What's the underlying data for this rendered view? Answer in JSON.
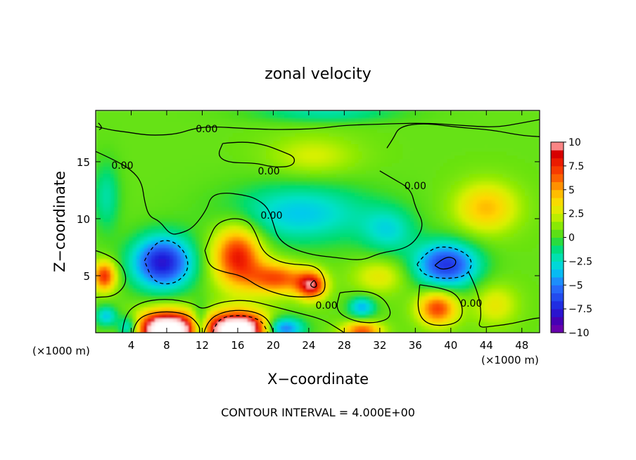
{
  "chart_data": {
    "type": "heatmap",
    "title": "zonal velocity",
    "xlabel": "X−coordinate",
    "ylabel": "Z−coordinate",
    "x_scale_note_left": "(×1000 m)",
    "x_scale_note_right": "(×1000 m)",
    "footer": "CONTOUR INTERVAL = 4.000E+00",
    "xlim": [
      0,
      50
    ],
    "ylim": [
      0,
      19.5
    ],
    "x_ticks": [
      4,
      8,
      12,
      16,
      20,
      24,
      28,
      32,
      36,
      40,
      44,
      48
    ],
    "x_tick_labels": [
      "4",
      "8",
      "12",
      "16",
      "20",
      "24",
      "28",
      "32",
      "36",
      "40",
      "44",
      "48"
    ],
    "y_ticks": [
      5,
      10,
      15
    ],
    "y_tick_labels": [
      "5",
      "10",
      "15"
    ],
    "colorbar": {
      "range": [
        -10,
        10
      ],
      "ticks": [
        10,
        7.5,
        5,
        2.5,
        0,
        -2.5,
        -5,
        -7.5,
        -10
      ],
      "tick_labels": [
        "10",
        "7.5",
        "5",
        "2.5",
        "0",
        "−2.5",
        "−5",
        "−7.5",
        "−10"
      ]
    },
    "contour_labels": [
      {
        "text": "0.00",
        "x": 12.5,
        "y": 17.9
      },
      {
        "text": "0.00",
        "x": 3.0,
        "y": 14.7
      },
      {
        "text": "0.00",
        "x": 19.5,
        "y": 14.2
      },
      {
        "text": "0.00",
        "x": 36.0,
        "y": 12.9
      },
      {
        "text": "0.00",
        "x": 19.8,
        "y": 10.3
      },
      {
        "text": "0.00",
        "x": 26.0,
        "y": 2.4
      },
      {
        "text": "0.00",
        "x": 42.3,
        "y": 2.6
      }
    ],
    "blobs": [
      {
        "x": 7.5,
        "y": 6.2,
        "v": -8.5,
        "rx": 3.4,
        "ry": 2.3
      },
      {
        "x": 39.5,
        "y": 6.0,
        "v": -7.5,
        "rx": 3.6,
        "ry": 2.0
      },
      {
        "x": 16.0,
        "y": 6.8,
        "v": 7.5,
        "rx": 2.8,
        "ry": 2.7
      },
      {
        "x": 20.5,
        "y": 4.8,
        "v": 6.0,
        "rx": 3.2,
        "ry": 1.4
      },
      {
        "x": 24.3,
        "y": 4.2,
        "v": 8.0,
        "rx": 1.6,
        "ry": 1.2
      },
      {
        "x": 1.0,
        "y": 5.0,
        "v": 7.0,
        "rx": 1.3,
        "ry": 1.3
      },
      {
        "x": 38.5,
        "y": 2.2,
        "v": 6.5,
        "rx": 2.2,
        "ry": 1.5
      },
      {
        "x": 8.0,
        "y": 0.3,
        "v": 14.0,
        "rx": 3.3,
        "ry": 1.6
      },
      {
        "x": 16.0,
        "y": 0.3,
        "v": 14.0,
        "rx": 3.6,
        "ry": 1.5
      },
      {
        "x": 11.8,
        "y": 0.3,
        "v": -6.0,
        "rx": 1.0,
        "ry": 1.8
      },
      {
        "x": 21.0,
        "y": 0.4,
        "v": -7.0,
        "rx": 2.3,
        "ry": 1.0
      },
      {
        "x": 3.7,
        "y": 0.5,
        "v": -5.0,
        "rx": 1.2,
        "ry": 1.0
      },
      {
        "x": 30.0,
        "y": 2.3,
        "v": -4.5,
        "rx": 1.5,
        "ry": 0.9
      },
      {
        "x": 30.0,
        "y": 0.2,
        "v": 6.0,
        "rx": 2.2,
        "ry": 0.8
      },
      {
        "x": 1.2,
        "y": 1.5,
        "v": -4.0,
        "rx": 1.2,
        "ry": 0.9
      },
      {
        "x": 23.0,
        "y": 10.5,
        "v": -4.0,
        "rx": 8.0,
        "ry": 2.6
      },
      {
        "x": 33.0,
        "y": 9.0,
        "v": -3.0,
        "rx": 3.0,
        "ry": 2.0
      },
      {
        "x": 24.5,
        "y": 15.5,
        "v": 2.0,
        "rx": 5.0,
        "ry": 1.8
      },
      {
        "x": 44.0,
        "y": 11.0,
        "v": 4.0,
        "rx": 3.5,
        "ry": 2.2
      },
      {
        "x": 32.0,
        "y": 5.0,
        "v": 2.5,
        "rx": 3.0,
        "ry": 1.5
      },
      {
        "x": 45.0,
        "y": 2.5,
        "v": 2.5,
        "rx": 2.5,
        "ry": 1.8
      },
      {
        "x": 1.2,
        "y": 12.0,
        "v": -2.5,
        "rx": 1.5,
        "ry": 3.0
      },
      {
        "x": 26.0,
        "y": 19.3,
        "v": -2.5,
        "rx": 8.0,
        "ry": 0.8
      }
    ],
    "contour_lines": [
      {
        "style": "solid",
        "points": [
          [
            0,
            18.1
          ],
          [
            1.5,
            17.8
          ],
          [
            3.5,
            17.6
          ],
          [
            6,
            17.3
          ],
          [
            9,
            17.4
          ],
          [
            11,
            17.9
          ],
          [
            13,
            18.1
          ],
          [
            17,
            17.9
          ],
          [
            21,
            17.8
          ],
          [
            25,
            17.9
          ],
          [
            28,
            18.2
          ],
          [
            32,
            18.3
          ],
          [
            37,
            18.4
          ],
          [
            41,
            18.2
          ],
          [
            45,
            18.0
          ],
          [
            48,
            18.4
          ],
          [
            50,
            18.7
          ]
        ]
      },
      {
        "style": "solid",
        "points": [
          [
            0,
            15.9
          ],
          [
            2,
            15.2
          ],
          [
            4,
            14.3
          ],
          [
            5.2,
            13.2
          ],
          [
            5.5,
            11.5
          ],
          [
            6.0,
            10.2
          ],
          [
            7.2,
            9.8
          ],
          [
            8.4,
            8.6
          ],
          [
            9.5,
            8.7
          ],
          [
            11.0,
            9.2
          ],
          [
            12.5,
            10.8
          ],
          [
            13.0,
            12.0
          ],
          [
            14.5,
            12.3
          ],
          [
            16.5,
            12.1
          ],
          [
            18.0,
            11.8
          ],
          [
            19.4,
            11.0
          ],
          [
            20.0,
            9.6
          ],
          [
            20.5,
            8.3
          ],
          [
            22.0,
            7.4
          ],
          [
            24.5,
            6.8
          ],
          [
            27.0,
            6.6
          ],
          [
            30.0,
            6.3
          ],
          [
            32.0,
            7.0
          ],
          [
            34.5,
            7.3
          ],
          [
            36.0,
            8.0
          ],
          [
            37.0,
            9.5
          ],
          [
            36.0,
            11.0
          ],
          [
            35.5,
            12.6
          ],
          [
            33.5,
            13.5
          ],
          [
            32.0,
            14.2
          ]
        ]
      },
      {
        "style": "solid",
        "points": [
          [
            14.3,
            16.6
          ],
          [
            16.5,
            16.8
          ],
          [
            19.0,
            16.5
          ],
          [
            21.0,
            15.9
          ],
          [
            22.5,
            15.4
          ],
          [
            22.2,
            14.6
          ],
          [
            20.0,
            14.5
          ],
          [
            18.0,
            14.9
          ],
          [
            15.0,
            14.9
          ],
          [
            13.7,
            15.5
          ],
          [
            14.3,
            16.6
          ]
        ]
      },
      {
        "style": "solid",
        "points": [
          [
            32.8,
            16.2
          ],
          [
            33.5,
            17.0
          ],
          [
            34.2,
            18.1
          ],
          [
            37.0,
            18.4
          ],
          [
            41.0,
            18.0
          ],
          [
            44.5,
            17.8
          ],
          [
            48.0,
            17.3
          ],
          [
            50.0,
            17.2
          ]
        ]
      },
      {
        "style": "solid",
        "points": [
          [
            12.3,
            7.2
          ],
          [
            12.8,
            8.3
          ],
          [
            13.6,
            9.6
          ],
          [
            15.5,
            10.1
          ],
          [
            17.2,
            9.8
          ],
          [
            18.0,
            8.8
          ],
          [
            18.8,
            7.1
          ],
          [
            20.4,
            6.3
          ],
          [
            22.0,
            6.0
          ],
          [
            25.0,
            5.9
          ],
          [
            26.0,
            4.4
          ],
          [
            25.5,
            3.2
          ],
          [
            22.5,
            3.1
          ],
          [
            20.5,
            3.4
          ],
          [
            18.4,
            4.0
          ],
          [
            16.5,
            5.0
          ],
          [
            14.5,
            5.3
          ],
          [
            12.8,
            5.8
          ],
          [
            12.3,
            7.2
          ]
        ]
      },
      {
        "style": "solid",
        "points": [
          [
            0,
            7.2
          ],
          [
            2.5,
            6.6
          ],
          [
            3.7,
            4.6
          ],
          [
            2.3,
            3.2
          ],
          [
            0,
            3.1
          ]
        ]
      },
      {
        "style": "solid",
        "points": [
          [
            27.5,
            3.5
          ],
          [
            30.0,
            3.8
          ],
          [
            32.5,
            3.1
          ],
          [
            33.5,
            1.4
          ],
          [
            31.5,
            0.8
          ],
          [
            29.0,
            1.0
          ],
          [
            27.0,
            1.9
          ],
          [
            27.5,
            3.5
          ]
        ]
      },
      {
        "style": "solid",
        "points": [
          [
            36.5,
            4.2
          ],
          [
            38.5,
            4.0
          ],
          [
            40.8,
            3.4
          ],
          [
            41.5,
            1.7
          ],
          [
            40.5,
            0.7
          ],
          [
            37.5,
            0.6
          ],
          [
            36.2,
            1.8
          ],
          [
            36.5,
            4.2
          ]
        ]
      },
      {
        "style": "solid",
        "points": [
          [
            42.0,
            5.3
          ],
          [
            43.0,
            3.8
          ],
          [
            43.5,
            1.5
          ],
          [
            43.0,
            0.4
          ],
          [
            45.0,
            0.6
          ],
          [
            47.0,
            0.8
          ],
          [
            49.0,
            1.2
          ],
          [
            50.0,
            1.3
          ]
        ]
      },
      {
        "style": "solid",
        "points": [
          [
            4.2,
            0.0
          ],
          [
            4.4,
            0.8
          ],
          [
            5.5,
            1.6
          ],
          [
            8.0,
            1.9
          ],
          [
            10.5,
            1.6
          ],
          [
            11.7,
            0.6
          ],
          [
            11.7,
            0.0
          ]
        ]
      },
      {
        "style": "solid",
        "points": [
          [
            12.2,
            0.0
          ],
          [
            12.6,
            1.1
          ],
          [
            14.5,
            1.9
          ],
          [
            17.0,
            2.0
          ],
          [
            19.0,
            1.5
          ],
          [
            19.8,
            0.6
          ],
          [
            20.0,
            0.0
          ]
        ]
      },
      {
        "style": "solid",
        "points": [
          [
            3.0,
            0.0
          ],
          [
            3.2,
            1.6
          ],
          [
            5.0,
            2.7
          ],
          [
            8.0,
            3.0
          ],
          [
            11.0,
            2.6
          ],
          [
            12.0,
            2.0
          ],
          [
            14.0,
            2.7
          ],
          [
            17.0,
            2.9
          ],
          [
            20.0,
            2.3
          ],
          [
            22.5,
            1.8
          ],
          [
            25.5,
            1.2
          ],
          [
            27.0,
            0.5
          ],
          [
            28.0,
            0.0
          ]
        ]
      },
      {
        "style": "dashed",
        "points": [
          [
            5.5,
            6.3
          ],
          [
            6.5,
            7.9
          ],
          [
            8.5,
            8.2
          ],
          [
            10.2,
            7.0
          ],
          [
            10.5,
            5.4
          ],
          [
            8.8,
            4.2
          ],
          [
            6.5,
            4.4
          ],
          [
            5.5,
            6.3
          ]
        ]
      },
      {
        "style": "dashed",
        "points": [
          [
            36.2,
            6.0
          ],
          [
            37.5,
            7.4
          ],
          [
            40.0,
            7.6
          ],
          [
            42.5,
            6.6
          ],
          [
            42.0,
            5.0
          ],
          [
            39.5,
            4.7
          ],
          [
            37.0,
            5.0
          ],
          [
            36.2,
            6.0
          ]
        ]
      },
      {
        "style": "solid",
        "points": [
          [
            38.2,
            5.9
          ],
          [
            39.3,
            6.7
          ],
          [
            40.6,
            6.5
          ],
          [
            40.5,
            5.8
          ],
          [
            39.0,
            5.5
          ],
          [
            38.2,
            5.9
          ]
        ]
      },
      {
        "style": "dashed",
        "points": [
          [
            13.2,
            0.0
          ],
          [
            13.6,
            1.2
          ],
          [
            16.0,
            1.6
          ],
          [
            18.6,
            1.2
          ],
          [
            19.4,
            0.0
          ]
        ]
      },
      {
        "style": "solid",
        "points": [
          [
            24.6,
            4.6
          ],
          [
            25.0,
            4.2
          ],
          [
            24.6,
            3.9
          ],
          [
            24.1,
            4.2
          ],
          [
            24.6,
            4.6
          ]
        ]
      },
      {
        "style": "solid",
        "points": [
          [
            0.3,
            18.4
          ],
          [
            0.8,
            18.0
          ],
          [
            0.4,
            17.8
          ]
        ]
      }
    ]
  }
}
